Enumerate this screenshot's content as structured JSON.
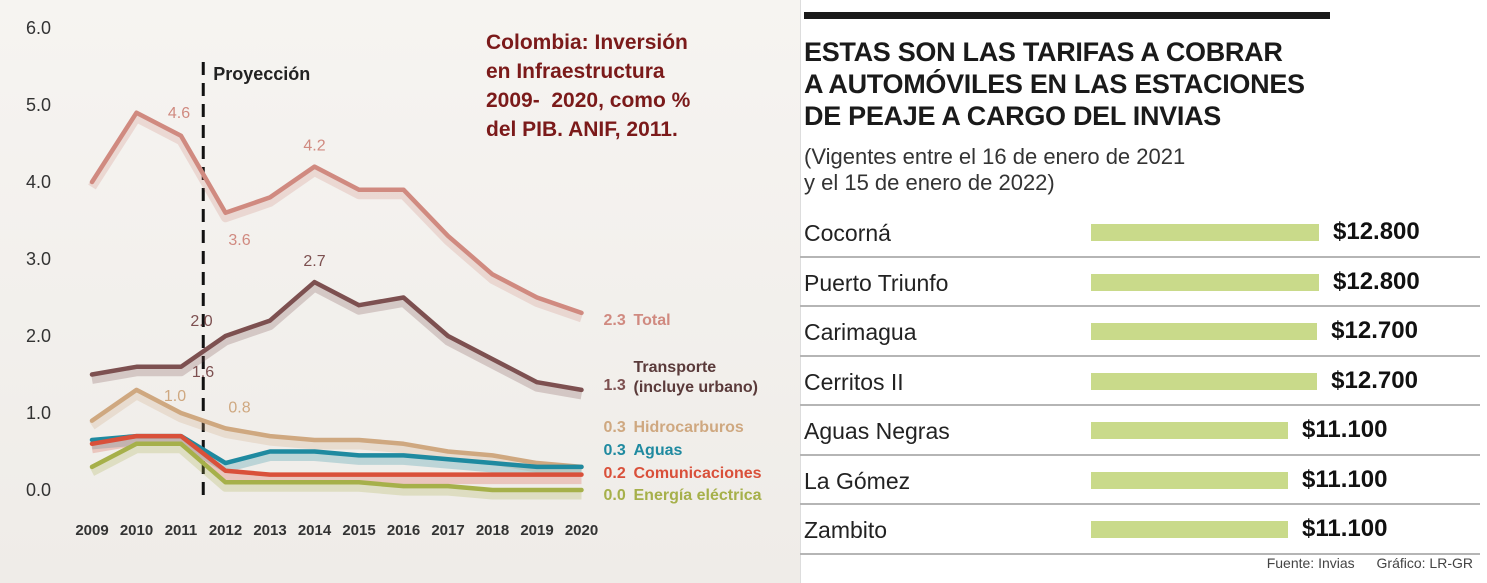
{
  "chart_data": [
    {
      "type": "line",
      "title": "Colombia: Inversión en Infraestructura 2009-  2020, como % del PIB. ANIF, 2011.",
      "title_lines": [
        "Colombia: Inversión",
        "en Infraestructura",
        "2009-  2020, como %",
        "del PIB. ANIF, 2011."
      ],
      "x": [
        "2009",
        "2010",
        "2011",
        "2012",
        "2013",
        "2014",
        "2015",
        "2016",
        "2017",
        "2018",
        "2019",
        "2020"
      ],
      "y_ticks": [
        "0.0",
        "1.0",
        "2.0",
        "3.0",
        "4.0",
        "5.0",
        "6.0"
      ],
      "ylim": [
        0,
        6
      ],
      "projection_label": "Proyección",
      "projection_after": "2011",
      "series": [
        {
          "name": "Total",
          "color": "#d08a80",
          "values": [
            4.0,
            4.9,
            4.6,
            3.6,
            3.8,
            4.2,
            3.9,
            3.9,
            3.3,
            2.8,
            2.5,
            2.3
          ],
          "end_value": "2.3"
        },
        {
          "name": "Transporte (incluye urbano)",
          "color": "#7d5050",
          "values": [
            1.5,
            1.6,
            1.6,
            2.0,
            2.2,
            2.7,
            2.4,
            2.5,
            2.0,
            1.7,
            1.4,
            1.3
          ],
          "end_value": "1.3"
        },
        {
          "name": "Hidrocarburos",
          "color": "#cfa880",
          "values": [
            0.9,
            1.3,
            1.0,
            0.8,
            0.7,
            0.65,
            0.65,
            0.6,
            0.5,
            0.45,
            0.35,
            0.3
          ],
          "end_value": "0.3"
        },
        {
          "name": "Aguas",
          "color": "#1f8aa0",
          "values": [
            0.65,
            0.7,
            0.7,
            0.35,
            0.5,
            0.5,
            0.45,
            0.45,
            0.4,
            0.35,
            0.3,
            0.3
          ],
          "end_value": "0.3"
        },
        {
          "name": "Comunicaciones",
          "color": "#d9503a",
          "values": [
            0.6,
            0.7,
            0.7,
            0.25,
            0.2,
            0.2,
            0.2,
            0.2,
            0.2,
            0.2,
            0.2,
            0.2
          ],
          "end_value": "0.2"
        },
        {
          "name": "Energía eléctrica",
          "color": "#a6b04a",
          "values": [
            0.3,
            0.6,
            0.6,
            0.1,
            0.1,
            0.1,
            0.1,
            0.05,
            0.05,
            0.0,
            0.0,
            0.0
          ],
          "end_value": "0.0"
        }
      ],
      "annotations": [
        {
          "text": "4.6",
          "series": 0,
          "x": "2011",
          "color": "#d08a80"
        },
        {
          "text": "3.6",
          "series": 0,
          "x": "2012",
          "color": "#d08a80"
        },
        {
          "text": "4.2",
          "series": 0,
          "x": "2014",
          "color": "#d08a80"
        },
        {
          "text": "2.0",
          "series": 1,
          "x": "2012",
          "color": "#7d5050"
        },
        {
          "text": "2.7",
          "series": 1,
          "x": "2014",
          "color": "#7d5050"
        },
        {
          "text": "1.6",
          "series": 1,
          "x": "2011",
          "color": "#7d5050"
        },
        {
          "text": "1.0",
          "series": 2,
          "x": "2011",
          "color": "#cfa880"
        },
        {
          "text": "0.8",
          "series": 2,
          "x": "2012",
          "color": "#cfa880"
        }
      ]
    },
    {
      "type": "bar",
      "title": "ESTAS SON LAS TARIFAS A COBRAR A AUTOMÓVILES EN LAS ESTACIONES DE PEAJE A CARGO DEL INVIAS",
      "title_lines": [
        "ESTAS SON LAS TARIFAS A COBRAR",
        "A AUTOMÓVILES EN LAS ESTACIONES",
        "DE PEAJE A CARGO DEL INVIAS"
      ],
      "subtitle": "(Vigentes entre el 16 de enero de 2021 y el 15 de enero de 2022)",
      "subtitle_lines": [
        "(Vigentes entre el 16 de enero de 2021",
        "y el 15 de enero de 2022)"
      ],
      "bar_color": "#c9da8a",
      "categories": [
        "Cocorná",
        "Puerto Triunfo",
        "Carimagua",
        "Cerritos II",
        "Aguas Negras",
        "La Gómez",
        "Zambito"
      ],
      "values": [
        12800,
        12800,
        12700,
        12700,
        11100,
        11100,
        11100
      ],
      "value_labels": [
        "$12.800",
        "$12.800",
        "$12.700",
        "$12.700",
        "$11.100",
        "$11.100",
        "$11.100"
      ],
      "source": "Fuente: Invias",
      "credit": "Gráfico: LR-GR"
    }
  ]
}
